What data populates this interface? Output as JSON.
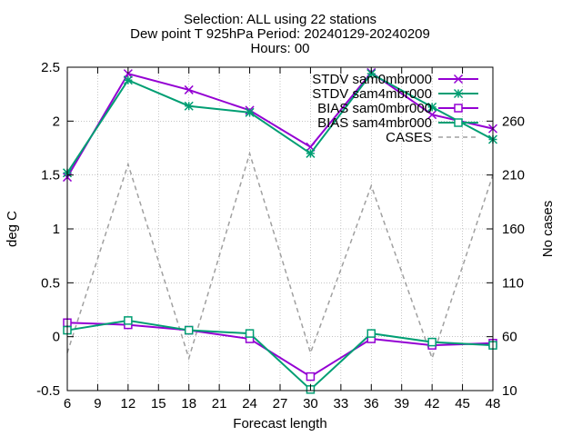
{
  "chart_data": {
    "type": "line",
    "title_lines": [
      "Selection: ALL using    22 stations",
      "Dew point T 925hPa   Period: 20240129-20240209",
      "Hours: 00"
    ],
    "xlabel": "Forecast length",
    "ylabel": "deg C",
    "y2label": "No cases",
    "xlim": [
      6,
      48
    ],
    "ylim": [
      -0.5,
      2.5
    ],
    "y2lim": [
      10,
      310
    ],
    "xticks": [
      6,
      9,
      12,
      15,
      18,
      21,
      24,
      27,
      30,
      33,
      36,
      39,
      42,
      45,
      48
    ],
    "yticks": [
      -0.5,
      0,
      0.5,
      1,
      1.5,
      2,
      2.5
    ],
    "ytick_labels": [
      "-0.5",
      "0",
      "0.5",
      "1",
      "1.5",
      "2",
      "2.5"
    ],
    "y2ticks": [
      10,
      60,
      110,
      160,
      210,
      260
    ],
    "grid": true,
    "legend_position": "top-right",
    "x": [
      6,
      12,
      18,
      24,
      30,
      36,
      42,
      48
    ],
    "series": [
      {
        "name": "STDV sam0mbr000",
        "axis": "y1",
        "color": "#9400d3",
        "marker": "x",
        "dash": "solid",
        "values": [
          1.48,
          2.44,
          2.29,
          2.1,
          1.76,
          2.45,
          2.06,
          1.93
        ]
      },
      {
        "name": "STDV sam4mbr000",
        "axis": "y1",
        "color": "#009e73",
        "marker": "star",
        "dash": "solid",
        "values": [
          1.52,
          2.38,
          2.14,
          2.08,
          1.7,
          2.44,
          2.13,
          1.83
        ]
      },
      {
        "name": "BIAS sam0mbr000",
        "axis": "y1",
        "color": "#9400d3",
        "marker": "square",
        "dash": "solid",
        "values": [
          0.13,
          0.11,
          0.06,
          -0.02,
          -0.37,
          -0.02,
          -0.08,
          -0.06
        ]
      },
      {
        "name": "BIAS sam4mbr000",
        "axis": "y1",
        "color": "#009e73",
        "marker": "square",
        "dash": "solid",
        "values": [
          0.06,
          0.15,
          0.06,
          0.03,
          -0.49,
          0.03,
          -0.05,
          -0.08
        ]
      },
      {
        "name": "CASES",
        "axis": "y2",
        "color": "#a0a0a0",
        "marker": "none",
        "dash": "dashed",
        "values": [
          45,
          220,
          40,
          230,
          45,
          200,
          40,
          210
        ]
      }
    ]
  }
}
